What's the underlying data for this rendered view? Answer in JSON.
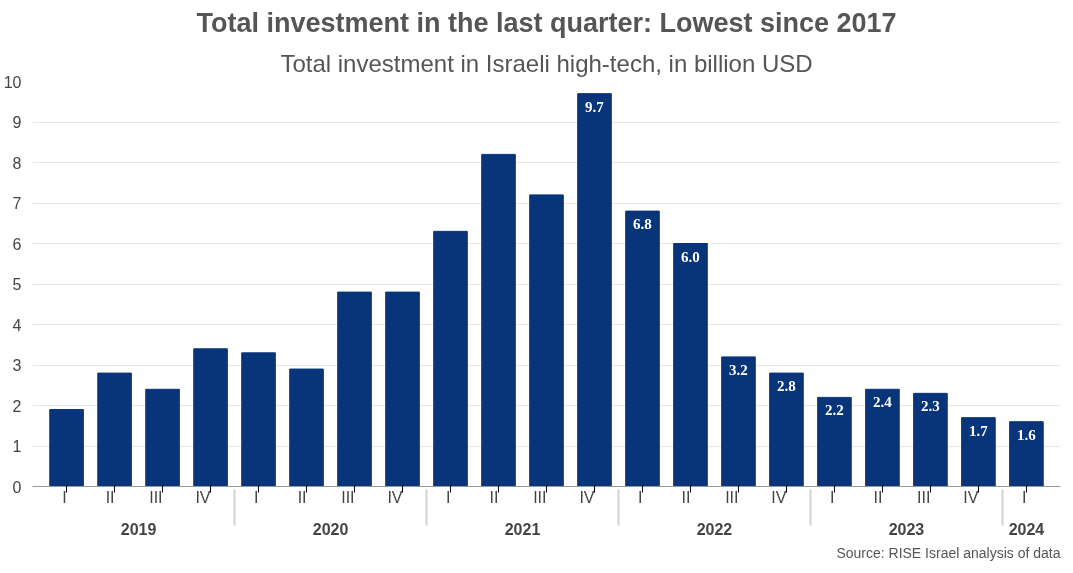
{
  "chart_data": {
    "type": "bar",
    "title": "Total investment in the last quarter: Lowest since 2017",
    "subtitle": "Total investment in Israeli high-tech, in billion USD",
    "categories": [
      "I",
      "II",
      "III",
      "IV",
      "I",
      "II",
      "III",
      "IV",
      "I",
      "II",
      "III",
      "IV",
      "I",
      "II",
      "III",
      "IV",
      "I",
      "II",
      "III",
      "IV",
      "I"
    ],
    "values": [
      1.9,
      2.8,
      2.4,
      3.4,
      3.3,
      2.9,
      4.8,
      4.8,
      6.3,
      8.2,
      7.2,
      9.7,
      6.8,
      6.0,
      3.2,
      2.8,
      2.2,
      2.4,
      2.3,
      1.7,
      1.6
    ],
    "value_labels": [
      null,
      null,
      null,
      null,
      null,
      null,
      null,
      null,
      null,
      null,
      null,
      "9.7",
      "6.8",
      "6.0",
      "3.2",
      "2.8",
      "2.2",
      "2.4",
      "2.3",
      "1.7",
      "1.6"
    ],
    "color": "#08357a",
    "ylim": [
      0,
      10
    ],
    "yticks": [
      0,
      1,
      2,
      3,
      4,
      5,
      6,
      7,
      8,
      9,
      10
    ],
    "grid": "y",
    "annotations": [
      "2019",
      "2020",
      "2021",
      "2022",
      "2023",
      "2024",
      "Source: RISE Israel analysis of data"
    ]
  }
}
